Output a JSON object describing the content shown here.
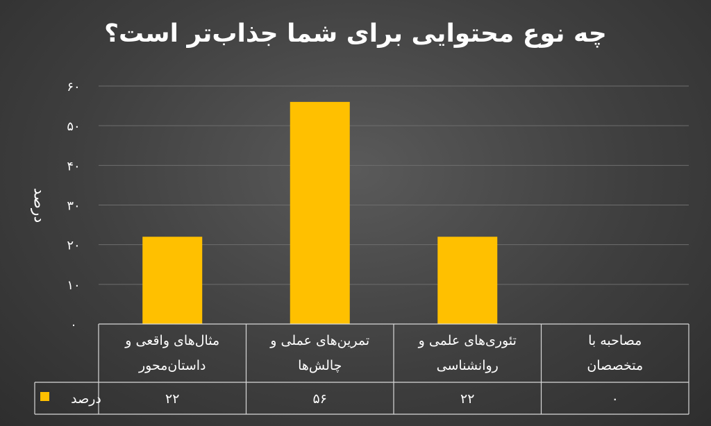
{
  "chart_data": {
    "type": "bar",
    "title": "چه نوع محتوایی برای شما جذاب‌تر است؟",
    "ylabel": "درصد",
    "ylim": [
      0,
      60
    ],
    "yticks": [
      0,
      10,
      20,
      30,
      40,
      50,
      60
    ],
    "ytick_labels": [
      "۰",
      "۱۰",
      "۲۰",
      "۳۰",
      "۴۰",
      "۵۰",
      "۶۰"
    ],
    "grid": true,
    "legend": "table-left",
    "categories": [
      [
        "مثال‌های واقعی و",
        "داستان‌محور"
      ],
      [
        "تمرین‌های عملی و",
        "چالش‌ها"
      ],
      [
        "تئوری‌های علمی و",
        "روانشناسی"
      ],
      [
        "مصاحبه با",
        "متخصصان"
      ]
    ],
    "series": [
      {
        "name": "درصد",
        "values": [
          22,
          56,
          22,
          0
        ],
        "value_labels": [
          "۲۲",
          "۵۶",
          "۲۲",
          "۰"
        ],
        "color": "#FFC000"
      }
    ]
  }
}
